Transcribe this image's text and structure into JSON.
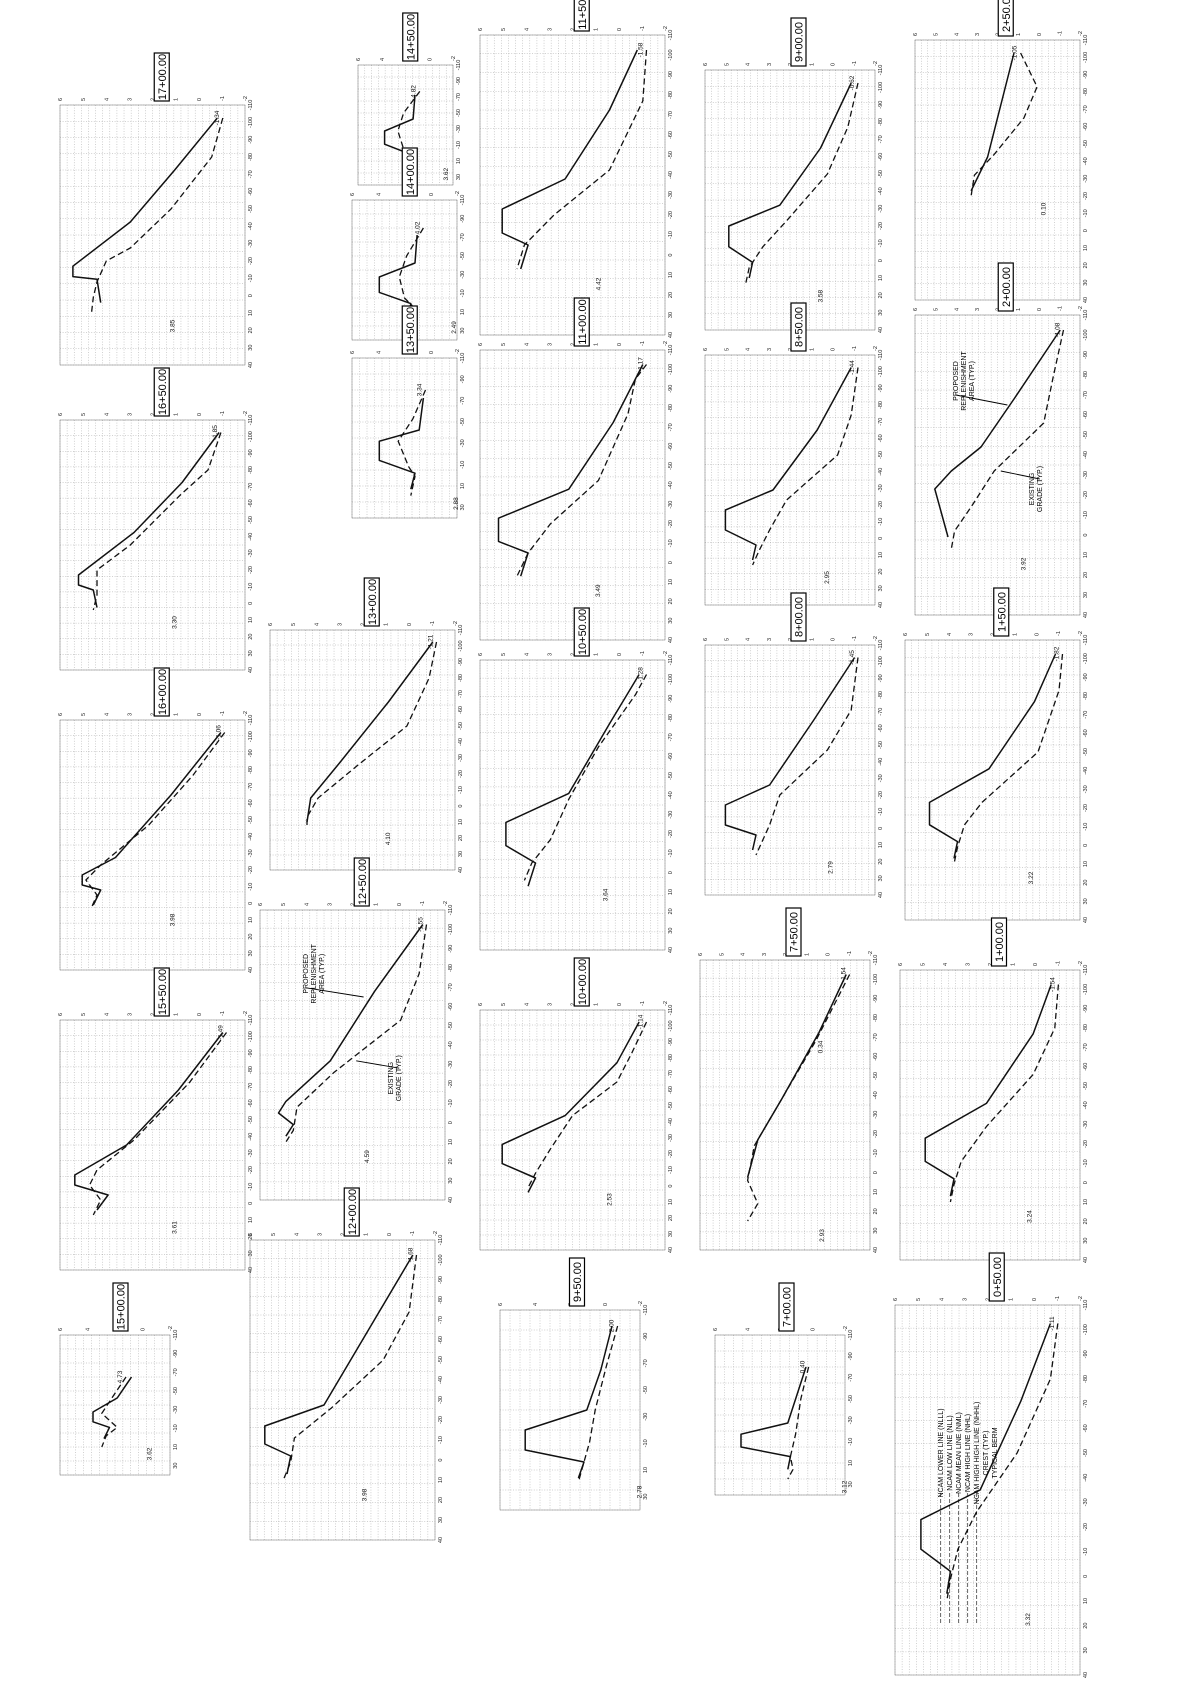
{
  "sheet": {
    "x_ticks": [
      "-110",
      "-100",
      "-90",
      "-80",
      "-70",
      "-60",
      "-50",
      "-40",
      "-30",
      "-20",
      "-10",
      "0",
      "10",
      "20",
      "30",
      "40"
    ],
    "y_ticks": [
      "6",
      "5",
      "4",
      "3",
      "2",
      "1",
      "0",
      "-1",
      "-2"
    ],
    "legend_lines": [
      "TYPICAL BERM",
      "CREST (TYP.)",
      "NCAM HIGH HIGH LINE (NHHL)",
      "NCAM HIGH LINE (NHL)",
      "NCAM MEAN LINE (NML)",
      "NCAM LOW LINE (NLL)",
      "NCAM LOWER LINE (NLLL)"
    ]
  },
  "sections": [
    {
      "label": "17+00.00",
      "end_left": "-1.34",
      "end_right": "3.85"
    },
    {
      "label": "16+50.00",
      "end_left": "-1.85",
      "end_right": "3.30"
    },
    {
      "label": "16+00.00",
      "end_left": "-1.06",
      "end_right": "3.98"
    },
    {
      "label": "15+50.00",
      "end_left": "-1.49",
      "end_right": "3.61"
    },
    {
      "label": "15+00.00",
      "end_left": "4.73",
      "end_right": "3.62"
    },
    {
      "label": "14+50.00",
      "end_left": "4.82",
      "end_right": "3.62"
    },
    {
      "label": "14+00.00",
      "end_left": "4.02",
      "end_right": "2.49"
    },
    {
      "label": "13+50.00",
      "end_left": "3.34",
      "end_right": "2.88"
    },
    {
      "label": "13+00.00",
      "end_left": "-1.21",
      "end_right": "4.10"
    },
    {
      "label": "12+50.00",
      "end_left": "-1.55",
      "end_right": "4.59",
      "annot_proposed": [
        "PROPOSED",
        "REPLENISHMENT",
        "AREA (TYP.)"
      ],
      "annot_existing": [
        "EXISTING",
        "GRADE (TYP.)"
      ]
    },
    {
      "label": "12+00.00",
      "end_left": "-1.68",
      "end_right": "3.98"
    },
    {
      "label": "11+50.00",
      "end_left": "-1.58",
      "end_right": "4.42"
    },
    {
      "label": "11+00.00",
      "end_left": "-1.17",
      "end_right": "3.49"
    },
    {
      "label": "10+50.00",
      "end_left": "-1.28",
      "end_right": "3.64"
    },
    {
      "label": "10+00.00",
      "end_left": "-1.14",
      "end_right": "2.53"
    },
    {
      "label": "9+50.00",
      "end_left": "2.00",
      "end_right": "2.78"
    },
    {
      "label": "9+00.00",
      "end_left": "-0.62",
      "end_right": "3.58"
    },
    {
      "label": "8+50.00",
      "end_left": "-1.44",
      "end_right": "2.95"
    },
    {
      "label": "8+00.00",
      "end_left": "-1.45",
      "end_right": "2.79"
    },
    {
      "label": "7+50.00",
      "end_left": "-1.54",
      "end_right": "2.93",
      "mid_val": "0.34"
    },
    {
      "label": "7+00.00",
      "end_left": "0.40",
      "end_right": "3.12"
    },
    {
      "label": "2+50.00",
      "end_left": "-1.05",
      "end_right": "0.10"
    },
    {
      "label": "2+00.00",
      "end_left": "-1.08",
      "end_right": "3.92",
      "annot_proposed": [
        "PROPOSED",
        "REPLENISHMENT",
        "AREA (TYP.)"
      ],
      "annot_existing": [
        "EXISTING",
        "GRADE (TYP.)"
      ]
    },
    {
      "label": "1+50.00",
      "end_left": "-1.82",
      "end_right": "3.22"
    },
    {
      "label": "1+00.00",
      "end_left": "-1.54",
      "end_right": "3.24"
    },
    {
      "label": "0+50.00",
      "end_left": "-1.11",
      "end_right": "3.32"
    }
  ]
}
